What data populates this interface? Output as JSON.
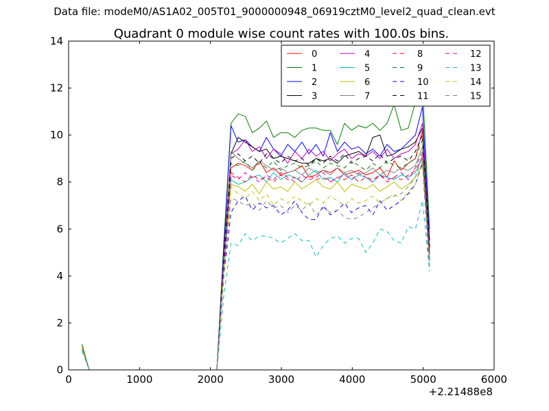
{
  "figure": {
    "suptitle": "Data file: modeM0/AS1A02_005T01_9000000948_06919cztM0_level2_quad_clean.evt"
  },
  "chart_data": {
    "type": "line",
    "title": "Quadrant 0 module wise count rates with 100.0s bins.",
    "xlabel": "",
    "ylabel": "",
    "x_offset_label": "+2.21488e8",
    "xlim": [
      0,
      6000
    ],
    "ylim": [
      0,
      14
    ],
    "x_ticks": [
      0,
      1000,
      2000,
      3000,
      4000,
      5000,
      6000
    ],
    "y_ticks": [
      0,
      2,
      4,
      6,
      8,
      10,
      12,
      14
    ],
    "legend_position": "top-right",
    "legend_columns": 4,
    "x": [
      190,
      290,
      390,
      490,
      590,
      690,
      790,
      890,
      990,
      1090,
      1190,
      1290,
      1390,
      1490,
      1590,
      1690,
      1790,
      1890,
      1990,
      2090,
      2190,
      2290,
      2390,
      2490,
      2590,
      2690,
      2790,
      2890,
      2990,
      3090,
      3190,
      3290,
      3390,
      3490,
      3590,
      3690,
      3790,
      3890,
      3990,
      4090,
      4190,
      4290,
      4390,
      4490,
      4590,
      4690,
      4790,
      4890,
      4990,
      5090
    ],
    "series": [
      {
        "name": "0",
        "color": "#ff0000",
        "style": "solid",
        "values": [
          1.0,
          0,
          0,
          0,
          0,
          0,
          0,
          0,
          0,
          0,
          0,
          0,
          0,
          0,
          0,
          0,
          0,
          0,
          0,
          0,
          4.5,
          8.6,
          8.8,
          8.7,
          8.5,
          8.9,
          8.4,
          8.6,
          8.3,
          8.4,
          8.5,
          8.7,
          8.2,
          8.3,
          8.5,
          8.4,
          8.6,
          8.3,
          8.4,
          8.5,
          8.3,
          8.4,
          8.6,
          8.2,
          8.9,
          8.5,
          8.8,
          9.0,
          10.2,
          5.0
        ]
      },
      {
        "name": "1",
        "color": "#008000",
        "style": "solid",
        "values": [
          1.1,
          0,
          0,
          0,
          0,
          0,
          0,
          0,
          0,
          0,
          0,
          0,
          0,
          0,
          0,
          0,
          0,
          0,
          0,
          0,
          5.5,
          10.5,
          10.9,
          10.8,
          10.1,
          10.3,
          10.6,
          9.9,
          10.1,
          10.1,
          9.9,
          10.2,
          10.3,
          10.3,
          10.2,
          10.2,
          9.6,
          10.5,
          10.2,
          10.4,
          10.3,
          10.5,
          10.2,
          10.5,
          11.3,
          10.2,
          10.3,
          11.4,
          12.1,
          6.0
        ]
      },
      {
        "name": "2",
        "color": "#0000ff",
        "style": "solid",
        "values": [
          1.0,
          0,
          0,
          0,
          0,
          0,
          0,
          0,
          0,
          0,
          0,
          0,
          0,
          0,
          0,
          0,
          0,
          0,
          0,
          0,
          5.3,
          10.4,
          9.7,
          9.8,
          9.5,
          9.3,
          9.9,
          9.4,
          9.1,
          9.6,
          9.3,
          9.7,
          9.2,
          9.6,
          9.1,
          10.1,
          9.3,
          9.7,
          9.4,
          9.5,
          9.2,
          9.4,
          9.1,
          9.6,
          9.3,
          9.4,
          9.7,
          10.0,
          11.2,
          5.5
        ]
      },
      {
        "name": "3",
        "color": "#000000",
        "style": "solid",
        "values": [
          1.0,
          0,
          0,
          0,
          0,
          0,
          0,
          0,
          0,
          0,
          0,
          0,
          0,
          0,
          0,
          0,
          0,
          0,
          0,
          0,
          5.0,
          9.2,
          9.9,
          9.7,
          9.5,
          9.3,
          9.4,
          9.0,
          9.1,
          9.0,
          8.9,
          8.8,
          8.8,
          9.0,
          8.9,
          9.0,
          8.8,
          9.1,
          9.2,
          9.3,
          9.1,
          9.9,
          10.0,
          9.1,
          9.2,
          9.4,
          9.5,
          9.7,
          10.3,
          5.2
        ]
      },
      {
        "name": "4",
        "color": "#bf00bf",
        "style": "solid",
        "values": [
          1.0,
          0,
          0,
          0,
          0,
          0,
          0,
          0,
          0,
          0,
          0,
          0,
          0,
          0,
          0,
          0,
          0,
          0,
          0,
          0,
          5.0,
          9.2,
          9.4,
          9.8,
          9.3,
          9.5,
          9.0,
          9.4,
          9.2,
          8.8,
          9.3,
          9.0,
          9.4,
          9.1,
          9.3,
          8.9,
          9.2,
          9.4,
          9.0,
          9.2,
          9.1,
          9.3,
          9.0,
          9.4,
          9.0,
          9.2,
          9.3,
          9.6,
          10.5,
          5.1
        ]
      },
      {
        "name": "5",
        "color": "#00bfbf",
        "style": "solid",
        "values": [
          1.0,
          0,
          0,
          0,
          0,
          0,
          0,
          0,
          0,
          0,
          0,
          0,
          0,
          0,
          0,
          0,
          0,
          0,
          0,
          0,
          4.5,
          8.1,
          7.9,
          8.0,
          8.2,
          8.3,
          8.0,
          8.4,
          8.1,
          8.3,
          8.2,
          8.0,
          8.3,
          8.5,
          8.1,
          8.2,
          8.0,
          8.4,
          8.1,
          8.3,
          8.2,
          8.0,
          8.3,
          8.2,
          8.1,
          8.3,
          8.2,
          8.4,
          9.0,
          4.8
        ]
      },
      {
        "name": "6",
        "color": "#bfbf00",
        "style": "solid",
        "values": [
          1.0,
          0,
          0,
          0,
          0,
          0,
          0,
          0,
          0,
          0,
          0,
          0,
          0,
          0,
          0,
          0,
          0,
          0,
          0,
          0,
          4.2,
          7.9,
          7.8,
          7.6,
          7.9,
          7.5,
          8.0,
          7.7,
          7.8,
          7.6,
          8.0,
          7.7,
          7.9,
          8.1,
          7.8,
          7.7,
          8.0,
          7.6,
          7.9,
          7.8,
          7.7,
          7.9,
          7.6,
          7.8,
          8.0,
          7.7,
          7.9,
          8.2,
          8.8,
          4.6
        ]
      },
      {
        "name": "7",
        "color": "#808080",
        "style": "solid",
        "values": [
          0.9,
          0,
          0,
          0,
          0,
          0,
          0,
          0,
          0,
          0,
          0,
          0,
          0,
          0,
          0,
          0,
          0,
          0,
          0,
          0,
          4.8,
          9.3,
          9.0,
          8.8,
          8.6,
          8.9,
          8.7,
          8.5,
          8.6,
          8.4,
          8.5,
          8.3,
          8.6,
          8.4,
          8.5,
          8.3,
          8.6,
          8.4,
          8.5,
          8.3,
          8.4,
          8.6,
          8.3,
          8.5,
          8.4,
          8.6,
          8.5,
          8.7,
          9.5,
          5.0
        ]
      },
      {
        "name": "8",
        "color": "#ff0000",
        "style": "dashed",
        "values": [
          0.9,
          0,
          0,
          0,
          0,
          0,
          0,
          0,
          0,
          0,
          0,
          0,
          0,
          0,
          0,
          0,
          0,
          0,
          0,
          0,
          4.3,
          8.4,
          8.2,
          8.0,
          8.3,
          8.1,
          8.2,
          8.0,
          8.3,
          8.1,
          8.2,
          8.0,
          8.3,
          8.1,
          8.2,
          8.0,
          8.2,
          8.1,
          8.3,
          8.0,
          8.2,
          8.1,
          8.3,
          8.0,
          8.2,
          8.1,
          8.3,
          8.5,
          9.1,
          4.7
        ]
      },
      {
        "name": "9",
        "color": "#008000",
        "style": "dashed",
        "values": [
          0.9,
          0,
          0,
          0,
          0,
          0,
          0,
          0,
          0,
          0,
          0,
          0,
          0,
          0,
          0,
          0,
          0,
          0,
          0,
          0,
          4.6,
          8.8,
          8.7,
          8.9,
          8.5,
          8.8,
          8.6,
          8.9,
          8.5,
          8.7,
          8.8,
          8.6,
          8.7,
          8.9,
          8.6,
          8.8,
          8.7,
          8.6,
          8.9,
          8.7,
          8.5,
          8.8,
          8.6,
          8.9,
          8.7,
          8.6,
          8.8,
          9.0,
          9.8,
          5.1
        ]
      },
      {
        "name": "10",
        "color": "#0000ff",
        "style": "dashed",
        "values": [
          0.9,
          0,
          0,
          0,
          0,
          0,
          0,
          0,
          0,
          0,
          0,
          0,
          0,
          0,
          0,
          0,
          0,
          0,
          0,
          0,
          4.0,
          6.7,
          7.2,
          7.4,
          6.8,
          7.1,
          6.9,
          7.0,
          6.6,
          6.8,
          7.2,
          6.7,
          6.4,
          6.4,
          7.0,
          6.6,
          6.8,
          7.1,
          6.7,
          6.9,
          7.0,
          6.6,
          7.2,
          6.8,
          7.0,
          7.2,
          7.5,
          7.9,
          8.8,
          4.2
        ]
      },
      {
        "name": "11",
        "color": "#000000",
        "style": "dashed",
        "values": [
          0.9,
          0,
          0,
          0,
          0,
          0,
          0,
          0,
          0,
          0,
          0,
          0,
          0,
          0,
          0,
          0,
          0,
          0,
          0,
          0,
          4.8,
          9.0,
          9.2,
          8.9,
          9.1,
          8.8,
          9.2,
          9.0,
          8.8,
          9.1,
          8.9,
          9.0,
          8.7,
          9.0,
          8.8,
          9.1,
          8.9,
          9.2,
          8.8,
          9.0,
          9.1,
          8.9,
          9.2,
          8.8,
          9.0,
          9.1,
          8.9,
          9.3,
          10.0,
          5.2
        ]
      },
      {
        "name": "12",
        "color": "#bf00bf",
        "style": "dashed",
        "values": [
          0.9,
          0,
          0,
          0,
          0,
          0,
          0,
          0,
          0,
          0,
          0,
          0,
          0,
          0,
          0,
          0,
          0,
          0,
          0,
          0,
          4.5,
          8.3,
          8.1,
          8.4,
          8.2,
          8.0,
          8.3,
          8.1,
          8.4,
          8.2,
          8.0,
          8.3,
          8.1,
          8.2,
          8.4,
          8.0,
          8.2,
          8.3,
          8.1,
          8.4,
          8.2,
          8.0,
          8.3,
          8.1,
          8.2,
          8.4,
          8.1,
          8.6,
          9.3,
          4.9
        ]
      },
      {
        "name": "13",
        "color": "#00bfbf",
        "style": "dashed",
        "values": [
          0.8,
          0,
          0,
          0,
          0,
          0,
          0,
          0,
          0,
          0,
          0,
          0,
          0,
          0,
          0,
          0,
          0,
          0,
          0,
          0,
          3.2,
          5.4,
          5.3,
          5.8,
          5.5,
          5.7,
          5.7,
          5.6,
          5.4,
          5.6,
          5.8,
          5.5,
          5.5,
          4.8,
          5.3,
          5.6,
          5.7,
          5.4,
          5.6,
          5.6,
          5.0,
          5.4,
          6.0,
          5.9,
          5.5,
          5.4,
          6.1,
          6.0,
          7.2,
          4.2
        ]
      },
      {
        "name": "14",
        "color": "#bfbf00",
        "style": "dashed",
        "values": [
          0.9,
          0,
          0,
          0,
          0,
          0,
          0,
          0,
          0,
          0,
          0,
          0,
          0,
          0,
          0,
          0,
          0,
          0,
          0,
          0,
          4.0,
          7.8,
          7.5,
          7.3,
          7.6,
          7.2,
          7.5,
          7.0,
          7.3,
          7.1,
          7.4,
          7.2,
          7.0,
          7.3,
          7.1,
          7.4,
          7.2,
          7.0,
          7.3,
          7.1,
          7.2,
          7.4,
          7.1,
          7.3,
          7.5,
          7.2,
          7.6,
          7.9,
          8.9,
          4.5
        ]
      },
      {
        "name": "15",
        "color": "#808080",
        "style": "dashed",
        "values": [
          0.9,
          0,
          0,
          0,
          0,
          0,
          0,
          0,
          0,
          0,
          0,
          0,
          0,
          0,
          0,
          0,
          0,
          0,
          0,
          0,
          4.2,
          7.3,
          7.2,
          7.0,
          7.1,
          6.8,
          7.2,
          6.9,
          7.0,
          6.7,
          7.0,
          6.8,
          7.1,
          6.6,
          6.9,
          6.7,
          6.8,
          6.5,
          6.4,
          6.5,
          6.7,
          6.9,
          7.1,
          7.3,
          7.4,
          7.5,
          7.8,
          8.2,
          9.2,
          4.4
        ]
      }
    ]
  }
}
